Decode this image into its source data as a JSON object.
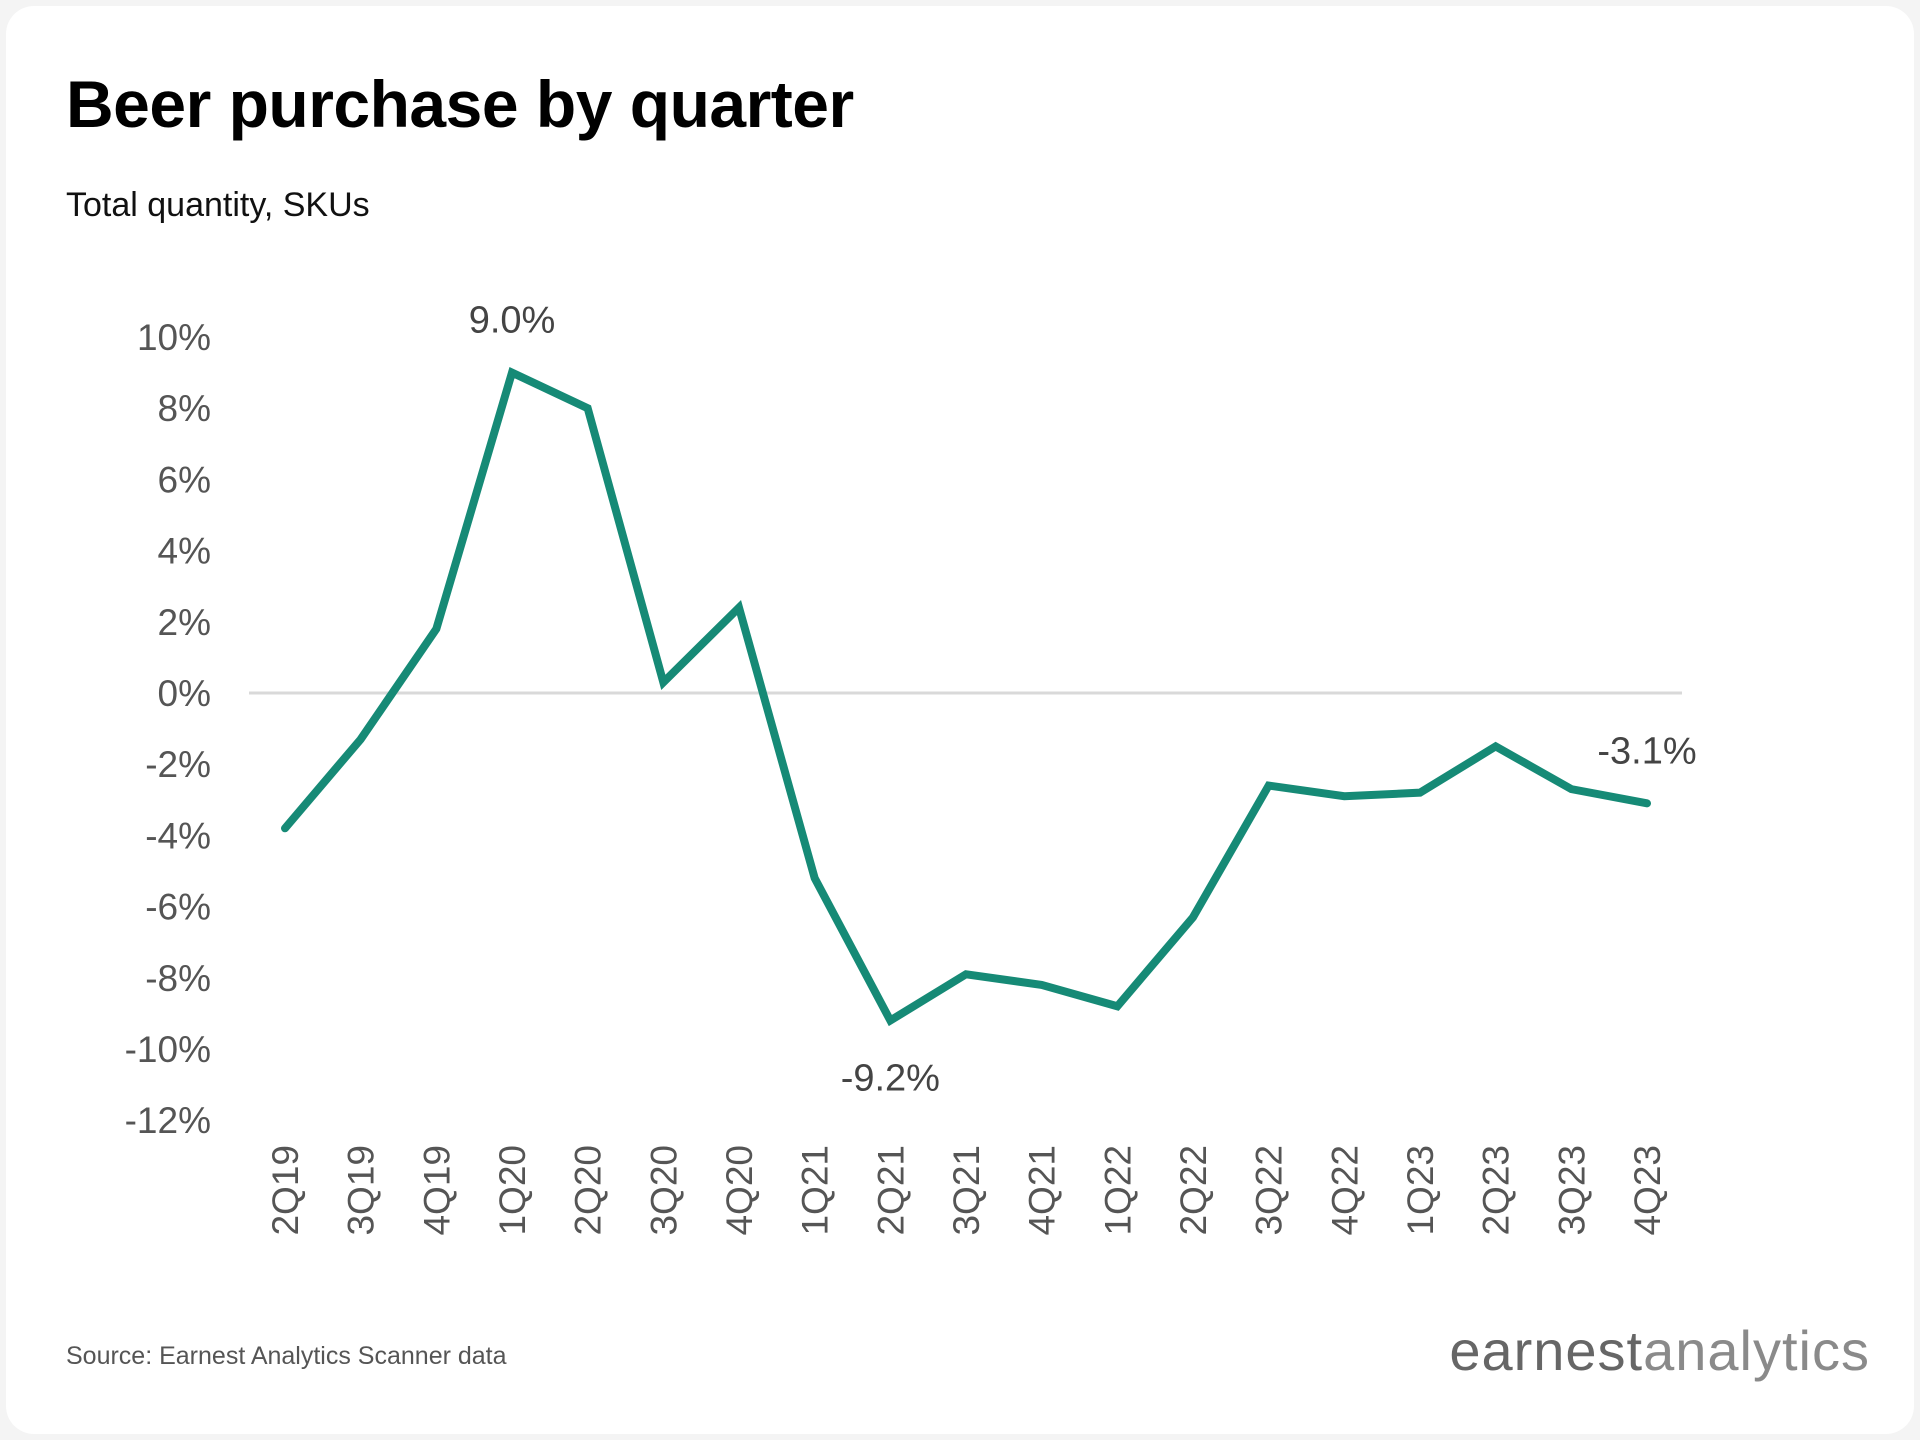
{
  "chart_data": {
    "type": "line",
    "title": "Beer purchase by quarter",
    "subtitle": "Total quantity, SKUs",
    "categories": [
      "2Q19",
      "3Q19",
      "4Q19",
      "1Q20",
      "2Q20",
      "3Q20",
      "4Q20",
      "1Q21",
      "2Q21",
      "3Q21",
      "4Q21",
      "1Q22",
      "2Q22",
      "3Q22",
      "4Q22",
      "1Q23",
      "2Q23",
      "3Q23",
      "4Q23"
    ],
    "series": [
      {
        "values": [
          -3.8,
          -1.3,
          1.8,
          9.0,
          8.0,
          0.3,
          2.4,
          -5.2,
          -9.2,
          -7.9,
          -8.2,
          -8.8,
          -6.3,
          -2.6,
          -2.9,
          -2.8,
          -1.5,
          -2.7,
          -3.1
        ],
        "color": "#168a76"
      }
    ],
    "annotations": [
      {
        "category": "1Q20",
        "text": "9.0%",
        "position": "above"
      },
      {
        "category": "2Q21",
        "text": "-9.2%",
        "position": "below"
      },
      {
        "category": "4Q23",
        "text": "-3.1%",
        "position": "above"
      }
    ],
    "yticks": [
      "10%",
      "8%",
      "6%",
      "4%",
      "2%",
      "0%",
      "-2%",
      "-4%",
      "-6%",
      "-8%",
      "-10%",
      "-12%"
    ],
    "ylim": [
      -12,
      10
    ],
    "xlabel": "",
    "ylabel": "",
    "grid": false,
    "zero_line_color": "#d9d9d9"
  },
  "footer": {
    "source": "Source: Earnest Analytics Scanner data",
    "logo_bold": "earnest",
    "logo_light": "analytics"
  }
}
